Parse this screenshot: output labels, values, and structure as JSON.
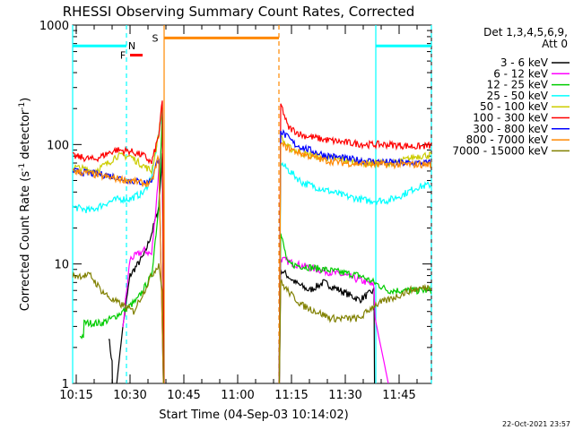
{
  "chart_data": {
    "type": "line",
    "title": "RHESSI Observing Summary Count Rates, Corrected",
    "xlabel": "Start Time (04-Sep-03 10:14:02)",
    "ylabel_main": "Corrected Count Rate (s",
    "ylabel_sup1": "-1",
    "ylabel_mid": " detector",
    "ylabel_sup2": "-1",
    "ylabel_end": ")",
    "x_unit": "minutes since 10:14:02",
    "xlim": [
      0,
      100
    ],
    "ylim": [
      1,
      1000
    ],
    "yscale": "log",
    "x_ticks": [
      {
        "label": "10:15",
        "value": 1
      },
      {
        "label": "10:30",
        "value": 16
      },
      {
        "label": "10:45",
        "value": 31
      },
      {
        "label": "11:00",
        "value": 46
      },
      {
        "label": "11:15",
        "value": 61
      },
      {
        "label": "11:30",
        "value": 76
      },
      {
        "label": "11:45",
        "value": 91
      }
    ],
    "y_ticks": [
      {
        "label": "1",
        "value": 1
      },
      {
        "label": "10",
        "value": 10
      },
      {
        "label": "100",
        "value": 100
      },
      {
        "label": "1000",
        "value": 1000
      }
    ],
    "legend": {
      "position": "right",
      "header": [
        "Det 1,3,4,5,6,9,",
        "Att 0"
      ]
    },
    "series": [
      {
        "name": "3 - 6 keV",
        "color": "#000000",
        "points": [
          [
            10,
            2.5
          ],
          [
            11,
            1.5
          ],
          [
            11.2,
            0.5
          ],
          [
            14,
            3
          ],
          [
            16,
            8
          ],
          [
            20,
            12
          ],
          [
            22,
            18
          ],
          [
            24,
            30
          ],
          [
            25,
            80
          ],
          [
            25.5,
            0.5
          ],
          [
            57.5,
            0.5
          ],
          [
            58,
            9
          ],
          [
            62,
            7
          ],
          [
            66,
            6
          ],
          [
            70,
            7
          ],
          [
            80,
            5
          ],
          [
            84,
            6
          ],
          [
            84.2,
            0.5
          ]
        ]
      },
      {
        "name": "6 - 12 keV",
        "color": "#ff00ff",
        "points": [
          [
            14,
            3
          ],
          [
            16,
            11
          ],
          [
            20,
            13
          ],
          [
            22,
            12
          ],
          [
            23,
            25
          ],
          [
            24,
            60
          ],
          [
            25,
            120
          ],
          [
            25.5,
            0.5
          ],
          [
            57.5,
            0.5
          ],
          [
            58,
            11
          ],
          [
            62,
            10
          ],
          [
            68,
            9
          ],
          [
            76,
            8
          ],
          [
            82,
            7
          ],
          [
            84,
            6.5
          ],
          [
            84.3,
            3.5
          ],
          [
            88,
            1
          ]
        ]
      },
      {
        "name": "12 - 25 keV",
        "color": "#00cc00",
        "points": [
          [
            2,
            2.5
          ],
          [
            3,
            2.5
          ],
          [
            3.2,
            3.2
          ],
          [
            8,
            3.2
          ],
          [
            11,
            3.5
          ],
          [
            14,
            4
          ],
          [
            18,
            5
          ],
          [
            22,
            8
          ],
          [
            24,
            30
          ],
          [
            25,
            200
          ],
          [
            25.5,
            0.5
          ],
          [
            57.5,
            0.5
          ],
          [
            58,
            18
          ],
          [
            60,
            10
          ],
          [
            70,
            9
          ],
          [
            80,
            8
          ],
          [
            84,
            7
          ],
          [
            88,
            6
          ],
          [
            100,
            6
          ]
        ]
      },
      {
        "name": "25 - 50 keV",
        "color": "#00ffff",
        "points": [
          [
            0,
            30
          ],
          [
            5,
            28
          ],
          [
            10,
            33
          ],
          [
            13,
            35
          ],
          [
            16,
            35
          ],
          [
            20,
            40
          ],
          [
            22,
            55
          ],
          [
            24,
            120
          ],
          [
            25,
            210
          ],
          [
            25.5,
            0.5
          ],
          [
            57.5,
            0.5
          ],
          [
            58,
            70
          ],
          [
            61,
            58
          ],
          [
            64,
            48
          ],
          [
            70,
            42
          ],
          [
            76,
            37
          ],
          [
            82,
            34
          ],
          [
            88,
            34
          ],
          [
            92,
            38
          ],
          [
            96,
            44
          ],
          [
            100,
            46
          ]
        ]
      },
      {
        "name": "50 - 100 keV",
        "color": "#cccc00",
        "points": [
          [
            0,
            65
          ],
          [
            6,
            60
          ],
          [
            10,
            70
          ],
          [
            12,
            80
          ],
          [
            16,
            80
          ],
          [
            18,
            72
          ],
          [
            22,
            60
          ],
          [
            24,
            120
          ],
          [
            25,
            230
          ],
          [
            25.5,
            0.5
          ],
          [
            57.5,
            0.5
          ],
          [
            58,
            115
          ],
          [
            60,
            95
          ],
          [
            64,
            84
          ],
          [
            70,
            78
          ],
          [
            76,
            74
          ],
          [
            82,
            70
          ],
          [
            90,
            70
          ],
          [
            96,
            80
          ],
          [
            100,
            82
          ]
        ]
      },
      {
        "name": "100 - 300 keV",
        "color": "#ff0000",
        "points": [
          [
            0,
            80
          ],
          [
            6,
            75
          ],
          [
            10,
            85
          ],
          [
            12,
            90
          ],
          [
            16,
            88
          ],
          [
            20,
            80
          ],
          [
            22,
            70
          ],
          [
            24,
            120
          ],
          [
            25,
            230
          ],
          [
            25.5,
            0.5
          ],
          [
            57.5,
            0.5
          ],
          [
            58,
            220
          ],
          [
            60,
            140
          ],
          [
            64,
            120
          ],
          [
            70,
            110
          ],
          [
            76,
            104
          ],
          [
            82,
            100
          ],
          [
            88,
            100
          ],
          [
            96,
            96
          ],
          [
            100,
            98
          ]
        ]
      },
      {
        "name": "300 - 800 keV",
        "color": "#0000ff",
        "points": [
          [
            0,
            60
          ],
          [
            6,
            57
          ],
          [
            10,
            55
          ],
          [
            16,
            50
          ],
          [
            20,
            48
          ],
          [
            22,
            50
          ],
          [
            24,
            80
          ],
          [
            25.5,
            0.5
          ],
          [
            57.5,
            0.5
          ],
          [
            58,
            130
          ],
          [
            62,
            100
          ],
          [
            66,
            90
          ],
          [
            70,
            82
          ],
          [
            76,
            76
          ],
          [
            84,
            72
          ],
          [
            92,
            70
          ],
          [
            100,
            70
          ]
        ]
      },
      {
        "name": "800 - 7000 keV",
        "color": "#ff8800",
        "points": [
          [
            0,
            60
          ],
          [
            6,
            56
          ],
          [
            10,
            53
          ],
          [
            16,
            50
          ],
          [
            20,
            47
          ],
          [
            22,
            48
          ],
          [
            24,
            80
          ],
          [
            25.5,
            0.5
          ],
          [
            57.5,
            0.5
          ],
          [
            58,
            100
          ],
          [
            62,
            88
          ],
          [
            66,
            80
          ],
          [
            70,
            74
          ],
          [
            76,
            70
          ],
          [
            84,
            68
          ],
          [
            92,
            68
          ],
          [
            100,
            68
          ]
        ]
      },
      {
        "name": "7000 - 15000 keV",
        "color": "#808000",
        "points": [
          [
            0,
            8
          ],
          [
            5,
            8
          ],
          [
            8,
            6
          ],
          [
            11,
            5
          ],
          [
            14,
            4.5
          ],
          [
            17,
            4
          ],
          [
            20,
            6
          ],
          [
            22,
            8
          ],
          [
            24,
            10
          ],
          [
            25,
            6
          ],
          [
            25.5,
            0.5
          ],
          [
            57.5,
            0.5
          ],
          [
            58,
            7
          ],
          [
            61,
            5.5
          ],
          [
            64,
            4.5
          ],
          [
            68,
            4
          ],
          [
            72,
            3.5
          ],
          [
            80,
            3.5
          ],
          [
            84,
            4.5
          ],
          [
            88,
            5
          ],
          [
            94,
            6
          ],
          [
            100,
            6.5
          ]
        ]
      }
    ],
    "vlines": [
      {
        "x": 0,
        "color": "#00ffff",
        "style": "solid"
      },
      {
        "x": 15,
        "color": "#00ffff",
        "style": "dashed"
      },
      {
        "x": 25.5,
        "color": "#ff8800",
        "style": "solid"
      },
      {
        "x": 57.5,
        "color": "#ff8800",
        "style": "dashed"
      },
      {
        "x": 84.5,
        "color": "#00ffff",
        "style": "solid"
      },
      {
        "x": 100,
        "color": "#00ffff",
        "style": "dashed"
      }
    ],
    "bars": [
      {
        "label": "",
        "color": "#00ffff",
        "x0": 0,
        "x1": 15,
        "y": 670
      },
      {
        "label": "N",
        "color": "#00ffff",
        "x0": 15,
        "x1": 15,
        "y": 670
      },
      {
        "label": "S",
        "color": "#ff8800",
        "x0": 25.5,
        "x1": 57.5,
        "y": 780
      },
      {
        "label": "F",
        "color": "#ff0000",
        "x0": 16,
        "x1": 19.5,
        "y": 560
      },
      {
        "label": "",
        "color": "#00ffff",
        "x0": 84.5,
        "x1": 100,
        "y": 670
      }
    ],
    "footer": "22-Oct-2021 23:57"
  }
}
